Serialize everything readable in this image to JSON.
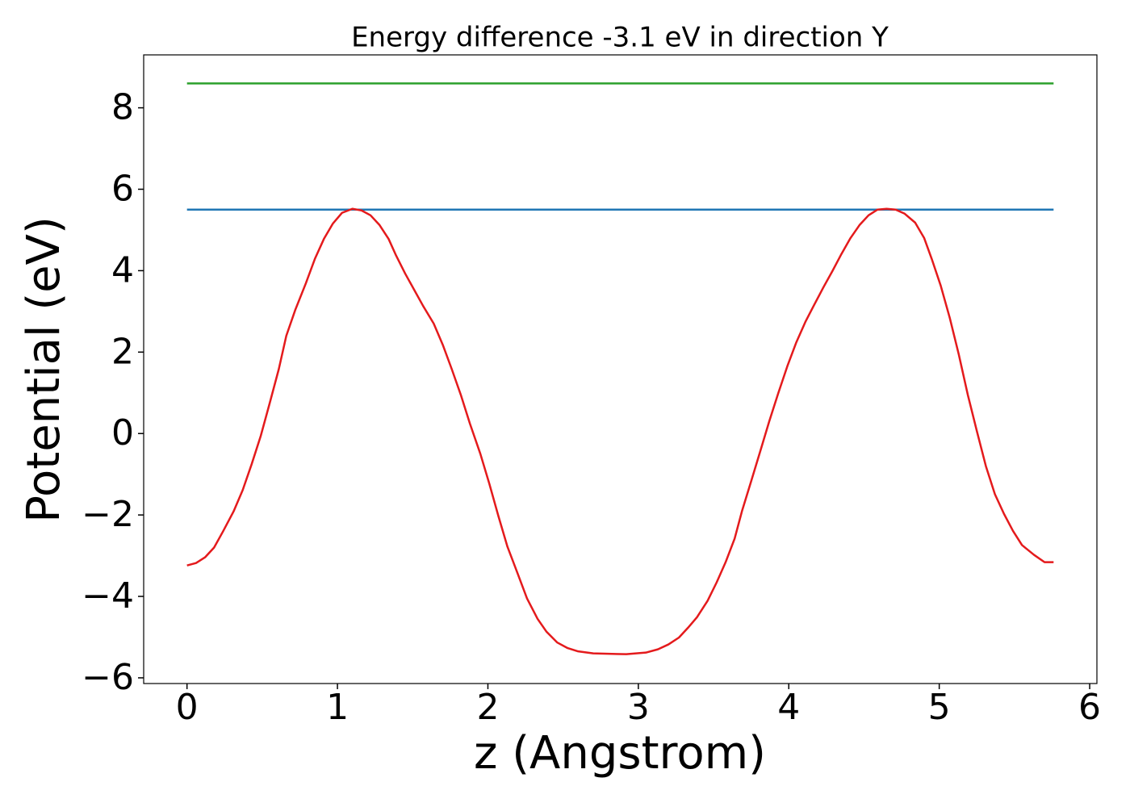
{
  "chart_data": {
    "type": "line",
    "title": "Energy difference -3.1 eV in direction Y",
    "xlabel": "z (Angstrom)",
    "ylabel": "Potential (eV)",
    "xlim": [
      -0.288,
      6.048
    ],
    "ylim": [
      -6.14,
      9.3
    ],
    "xticks": [
      0,
      1,
      2,
      3,
      4,
      5,
      6
    ],
    "yticks": [
      {
        "value": -6,
        "label": "−6"
      },
      {
        "value": -4,
        "label": "−4"
      },
      {
        "value": -2,
        "label": "−2"
      },
      0,
      2,
      4,
      6,
      8
    ],
    "grid": false,
    "series": [
      {
        "color": "#2ca02c",
        "x": [
          0,
          5.76
        ],
        "values": [
          8.6,
          8.6
        ]
      },
      {
        "color": "#1f77b4",
        "x": [
          0,
          5.76
        ],
        "values": [
          5.5,
          5.5
        ]
      },
      {
        "color": "#e41a1c",
        "x": [
          0,
          0.06,
          0.12,
          0.18,
          0.24,
          0.31,
          0.37,
          0.43,
          0.49,
          0.55,
          0.61,
          0.66,
          0.72,
          0.79,
          0.85,
          0.91,
          0.97,
          1.03,
          1.1,
          1.16,
          1.22,
          1.28,
          1.34,
          1.39,
          1.45,
          1.51,
          1.57,
          1.64,
          1.7,
          1.76,
          1.82,
          1.88,
          1.95,
          2.01,
          2.07,
          2.13,
          2.2,
          2.26,
          2.33,
          2.39,
          2.46,
          2.53,
          2.6,
          2.7,
          2.92,
          3.05,
          3.13,
          3.2,
          3.27,
          3.33,
          3.39,
          3.46,
          3.52,
          3.58,
          3.64,
          3.69,
          3.75,
          3.81,
          3.87,
          3.93,
          3.99,
          4.05,
          4.11,
          4.17,
          4.23,
          4.29,
          4.35,
          4.41,
          4.47,
          4.53,
          4.59,
          4.65,
          4.71,
          4.77,
          4.84,
          4.9,
          4.95,
          5.01,
          5.07,
          5.13,
          5.19,
          5.25,
          5.31,
          5.37,
          5.43,
          5.49,
          5.55,
          5.63,
          5.7,
          5.76
        ],
        "values": [
          -3.24,
          -3.18,
          -3.04,
          -2.8,
          -2.4,
          -1.91,
          -1.39,
          -0.75,
          -0.06,
          0.75,
          1.58,
          2.4,
          3.04,
          3.69,
          4.29,
          4.78,
          5.16,
          5.42,
          5.52,
          5.48,
          5.36,
          5.12,
          4.78,
          4.37,
          3.93,
          3.53,
          3.13,
          2.7,
          2.18,
          1.58,
          0.95,
          0.25,
          -0.5,
          -1.24,
          -2.03,
          -2.78,
          -3.46,
          -4.05,
          -4.55,
          -4.87,
          -5.13,
          -5.27,
          -5.35,
          -5.4,
          -5.42,
          -5.38,
          -5.3,
          -5.18,
          -5.01,
          -4.77,
          -4.51,
          -4.11,
          -3.66,
          -3.16,
          -2.58,
          -1.89,
          -1.17,
          -0.44,
          0.3,
          0.99,
          1.65,
          2.24,
          2.74,
          3.17,
          3.59,
          3.99,
          4.41,
          4.8,
          5.12,
          5.36,
          5.5,
          5.52,
          5.5,
          5.4,
          5.18,
          4.8,
          4.29,
          3.63,
          2.84,
          1.94,
          0.95,
          0.06,
          -0.8,
          -1.49,
          -1.97,
          -2.39,
          -2.74,
          -2.98,
          -3.16,
          -3.16
        ]
      }
    ]
  }
}
